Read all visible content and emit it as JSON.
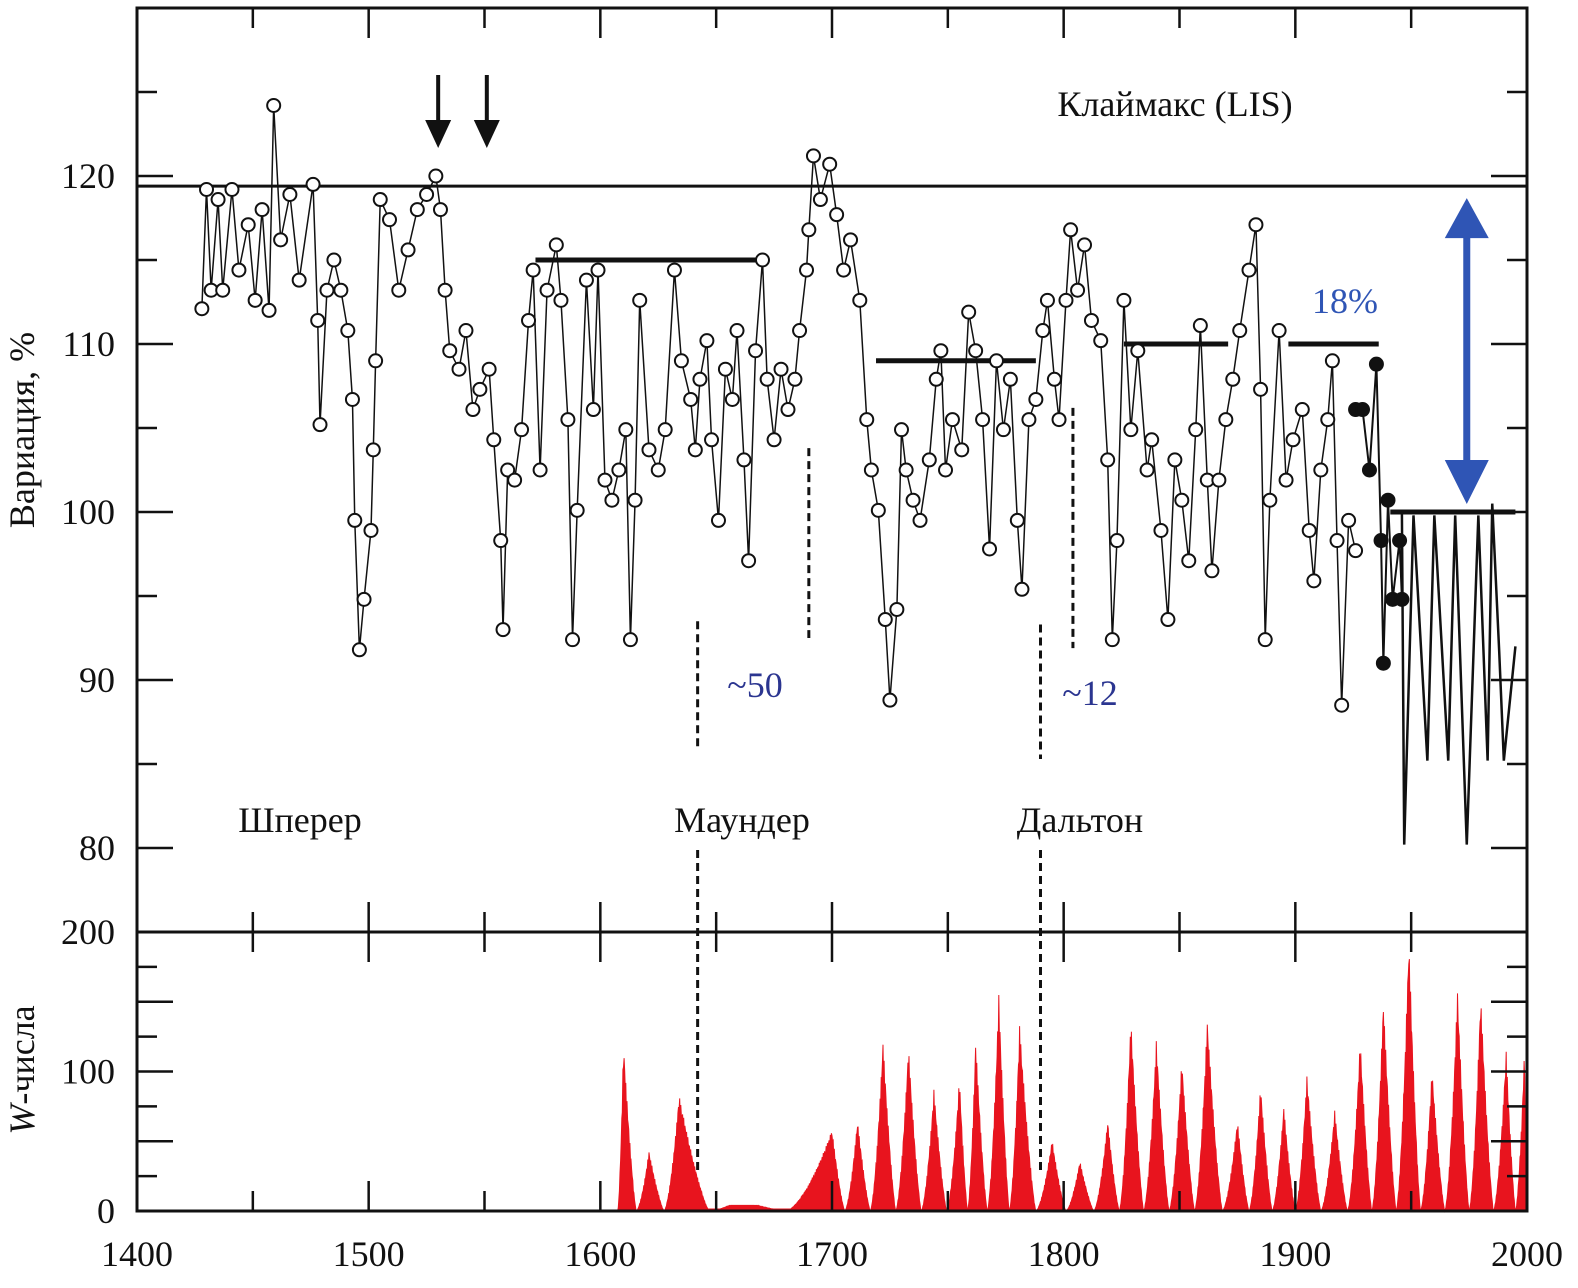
{
  "chart_data": [
    {
      "type": "scatter",
      "panel": "upper",
      "ylabel": "Вариация, %",
      "ylim": [
        75,
        130
      ],
      "xlim": [
        1400,
        2000
      ],
      "yticks": [
        "120",
        "110",
        "100",
        "90",
        "80"
      ],
      "ytick_values": [
        120,
        110,
        100,
        90,
        80
      ],
      "open_points": [
        [
          1428,
          112.1
        ],
        [
          1430,
          119.2
        ],
        [
          1432,
          113.2
        ],
        [
          1435,
          118.6
        ],
        [
          1437,
          113.2
        ],
        [
          1441,
          119.2
        ],
        [
          1444,
          114.4
        ],
        [
          1448,
          117.1
        ],
        [
          1451,
          112.6
        ],
        [
          1454,
          118
        ],
        [
          1457,
          112
        ],
        [
          1459,
          124.2
        ],
        [
          1462,
          116.2
        ],
        [
          1466,
          118.9
        ],
        [
          1470,
          113.8
        ],
        [
          1476,
          119.5
        ],
        [
          1478,
          111.4
        ],
        [
          1479,
          105.2
        ],
        [
          1482,
          113.2
        ],
        [
          1485,
          115
        ],
        [
          1488,
          113.2
        ],
        [
          1491,
          110.8
        ],
        [
          1493,
          106.7
        ],
        [
          1494,
          99.5
        ],
        [
          1496,
          91.8
        ],
        [
          1498,
          94.8
        ],
        [
          1501,
          98.9
        ],
        [
          1502,
          103.7
        ],
        [
          1503,
          109
        ],
        [
          1505,
          118.6
        ],
        [
          1509,
          117.4
        ],
        [
          1513,
          113.2
        ],
        [
          1517,
          115.6
        ],
        [
          1521,
          118
        ],
        [
          1525,
          118.9
        ],
        [
          1529,
          120
        ],
        [
          1531,
          118
        ],
        [
          1533,
          113.2
        ],
        [
          1535,
          109.6
        ],
        [
          1539,
          108.5
        ],
        [
          1542,
          110.8
        ],
        [
          1545,
          106.1
        ],
        [
          1548,
          107.3
        ],
        [
          1552,
          108.5
        ],
        [
          1554,
          104.3
        ],
        [
          1557,
          98.3
        ],
        [
          1558,
          93
        ],
        [
          1560,
          102.5
        ],
        [
          1563,
          101.9
        ],
        [
          1566,
          104.9
        ],
        [
          1569,
          111.4
        ],
        [
          1571,
          114.4
        ],
        [
          1574,
          102.5
        ],
        [
          1577,
          113.2
        ],
        [
          1581,
          115.9
        ],
        [
          1583,
          112.6
        ],
        [
          1586,
          105.5
        ],
        [
          1588,
          92.4
        ],
        [
          1590,
          100.1
        ],
        [
          1594,
          113.8
        ],
        [
          1597,
          106.1
        ],
        [
          1599,
          114.4
        ],
        [
          1602,
          101.9
        ],
        [
          1605,
          100.7
        ],
        [
          1608,
          102.5
        ],
        [
          1611,
          104.9
        ],
        [
          1613,
          92.4
        ],
        [
          1615,
          100.7
        ],
        [
          1617,
          112.6
        ],
        [
          1621,
          103.7
        ],
        [
          1625,
          102.5
        ],
        [
          1628,
          104.9
        ],
        [
          1632,
          114.4
        ],
        [
          1635,
          109
        ],
        [
          1639,
          106.7
        ],
        [
          1641,
          103.7
        ],
        [
          1643,
          107.9
        ],
        [
          1646,
          110.2
        ],
        [
          1648,
          104.3
        ],
        [
          1651,
          99.5
        ],
        [
          1654,
          108.5
        ],
        [
          1657,
          106.7
        ],
        [
          1659,
          110.8
        ],
        [
          1662,
          103.1
        ],
        [
          1664,
          97.1
        ],
        [
          1667,
          109.6
        ],
        [
          1670,
          115
        ],
        [
          1672,
          107.9
        ],
        [
          1675,
          104.3
        ],
        [
          1678,
          108.5
        ],
        [
          1681,
          106.1
        ],
        [
          1684,
          107.9
        ],
        [
          1686,
          110.8
        ],
        [
          1689,
          114.4
        ],
        [
          1690,
          116.8
        ],
        [
          1692,
          121.2
        ],
        [
          1695,
          118.6
        ],
        [
          1699,
          120.7
        ],
        [
          1702,
          117.7
        ],
        [
          1705,
          114.4
        ],
        [
          1708,
          116.2
        ],
        [
          1712,
          112.6
        ],
        [
          1715,
          105.5
        ],
        [
          1717,
          102.5
        ],
        [
          1720,
          100.1
        ],
        [
          1723,
          93.6
        ],
        [
          1725,
          88.8
        ],
        [
          1728,
          94.2
        ],
        [
          1730,
          104.9
        ],
        [
          1732,
          102.5
        ],
        [
          1735,
          100.7
        ],
        [
          1738,
          99.5
        ],
        [
          1742,
          103.1
        ],
        [
          1745,
          107.9
        ],
        [
          1747,
          109.6
        ],
        [
          1749,
          102.5
        ],
        [
          1752,
          105.5
        ],
        [
          1756,
          103.7
        ],
        [
          1759,
          111.9
        ],
        [
          1762,
          109.6
        ],
        [
          1765,
          105.5
        ],
        [
          1768,
          97.8
        ],
        [
          1771,
          109
        ],
        [
          1774,
          104.9
        ],
        [
          1777,
          107.9
        ],
        [
          1780,
          99.5
        ],
        [
          1782,
          95.4
        ],
        [
          1785,
          105.5
        ],
        [
          1788,
          106.7
        ],
        [
          1791,
          110.8
        ],
        [
          1793,
          112.6
        ],
        [
          1796,
          107.9
        ],
        [
          1798,
          105.5
        ],
        [
          1801,
          112.6
        ],
        [
          1803,
          116.8
        ],
        [
          1806,
          113.2
        ],
        [
          1809,
          115.9
        ],
        [
          1812,
          111.4
        ],
        [
          1816,
          110.2
        ],
        [
          1819,
          103.1
        ],
        [
          1821,
          92.4
        ],
        [
          1823,
          98.3
        ],
        [
          1826,
          112.6
        ],
        [
          1829,
          104.9
        ],
        [
          1832,
          109.6
        ],
        [
          1836,
          102.5
        ],
        [
          1838,
          104.3
        ],
        [
          1842,
          98.9
        ],
        [
          1845,
          93.6
        ],
        [
          1848,
          103.1
        ],
        [
          1851,
          100.7
        ],
        [
          1854,
          97.1
        ],
        [
          1857,
          104.9
        ],
        [
          1859,
          111.1
        ],
        [
          1862,
          101.9
        ],
        [
          1864,
          96.5
        ],
        [
          1867,
          101.9
        ],
        [
          1870,
          105.5
        ],
        [
          1873,
          107.9
        ],
        [
          1876,
          110.8
        ],
        [
          1880,
          114.4
        ],
        [
          1883,
          117.1
        ],
        [
          1885,
          107.3
        ],
        [
          1887,
          92.4
        ],
        [
          1889,
          100.7
        ],
        [
          1893,
          110.8
        ],
        [
          1896,
          101.9
        ],
        [
          1899,
          104.3
        ],
        [
          1903,
          106.1
        ],
        [
          1906,
          98.9
        ],
        [
          1908,
          95.9
        ],
        [
          1911,
          102.5
        ],
        [
          1914,
          105.5
        ],
        [
          1916,
          109
        ],
        [
          1918,
          98.3
        ],
        [
          1920,
          88.5
        ],
        [
          1923,
          99.5
        ],
        [
          1926,
          97.7
        ]
      ],
      "filled_points": [
        [
          1926,
          106.1
        ],
        [
          1929,
          106.1
        ],
        [
          1932,
          102.5
        ],
        [
          1935,
          108.8
        ],
        [
          1937,
          98.3
        ],
        [
          1938,
          91
        ],
        [
          1940,
          100.7
        ],
        [
          1942,
          94.8
        ],
        [
          1945,
          98.3
        ],
        [
          1946,
          94.8
        ]
      ],
      "modern_line": [
        [
          1946,
          100
        ],
        [
          1947,
          80.2
        ],
        [
          1951,
          99.8
        ],
        [
          1957,
          85.2
        ],
        [
          1960,
          99.8
        ],
        [
          1966,
          85.2
        ],
        [
          1969,
          99.8
        ],
        [
          1974,
          80.2
        ],
        [
          1979,
          99.8
        ],
        [
          1983,
          85.2
        ],
        [
          1985,
          100.5
        ],
        [
          1988,
          91.7
        ],
        [
          1990,
          85.2
        ],
        [
          1995,
          92
        ]
      ],
      "reference_line_LIS": 119.4,
      "level_segments": [
        [
          1572,
          1669,
          115
        ],
        [
          1719,
          1788,
          109
        ],
        [
          1826,
          1871,
          110
        ],
        [
          1897,
          1936,
          110
        ],
        [
          1941,
          1995,
          100
        ]
      ],
      "arrows_down_years": [
        1530,
        1551
      ],
      "double_arrow": {
        "year": 1974,
        "from": 119.4,
        "to": 100,
        "color": "#2f55b5"
      },
      "dashed_lines": [
        [
          1642,
          93.5,
          86
        ],
        [
          1690,
          103.8,
          92.5
        ],
        [
          1790,
          93.3,
          85.3
        ],
        [
          1804,
          106.2,
          91.9
        ]
      ],
      "annotations": {
        "climax": "Клаймакс (LIS)",
        "percent": "18%",
        "maunder_dur": "~50",
        "dalton_dur": "~12",
        "sporer": "Шперер",
        "maunder": "Маундер",
        "dalton": "Дальтон"
      },
      "annotation_color": "#2b3590"
    },
    {
      "type": "area",
      "panel": "lower",
      "ylabel_italic": "W",
      "ylabel_rest": "-числа",
      "ylim": [
        0,
        200
      ],
      "yticks": [
        "200",
        "100",
        "0"
      ],
      "ytick_values": [
        200,
        100,
        0
      ],
      "xlabel": "",
      "xticks": [
        "1400",
        "1500",
        "1600",
        "1700",
        "1800",
        "1900",
        "2000"
      ],
      "xtick_values": [
        1400,
        1500,
        1600,
        1700,
        1800,
        1900,
        2000
      ],
      "color": "#e8141e",
      "cycle_peaks": [
        [
          1610,
          120
        ],
        [
          1621,
          43
        ],
        [
          1634,
          83
        ],
        [
          1660,
          8
        ],
        [
          1700,
          58
        ],
        [
          1711,
          65
        ],
        [
          1722,
          122
        ],
        [
          1733,
          118
        ],
        [
          1744,
          87
        ],
        [
          1755,
          95
        ],
        [
          1762,
          122
        ],
        [
          1772,
          155
        ],
        [
          1781,
          133
        ],
        [
          1795,
          51
        ],
        [
          1807,
          36
        ],
        [
          1819,
          65
        ],
        [
          1829,
          137
        ],
        [
          1840,
          122
        ],
        [
          1851,
          108
        ],
        [
          1862,
          137
        ],
        [
          1875,
          65
        ],
        [
          1885,
          90
        ],
        [
          1895,
          75
        ],
        [
          1905,
          97
        ],
        [
          1917,
          72
        ],
        [
          1928,
          122
        ],
        [
          1938,
          151
        ],
        [
          1949,
          195
        ],
        [
          1959,
          101
        ],
        [
          1970,
          158
        ],
        [
          1980,
          155
        ],
        [
          1991,
          115
        ],
        [
          1999,
          120
        ]
      ],
      "start_year": 1605
    }
  ]
}
